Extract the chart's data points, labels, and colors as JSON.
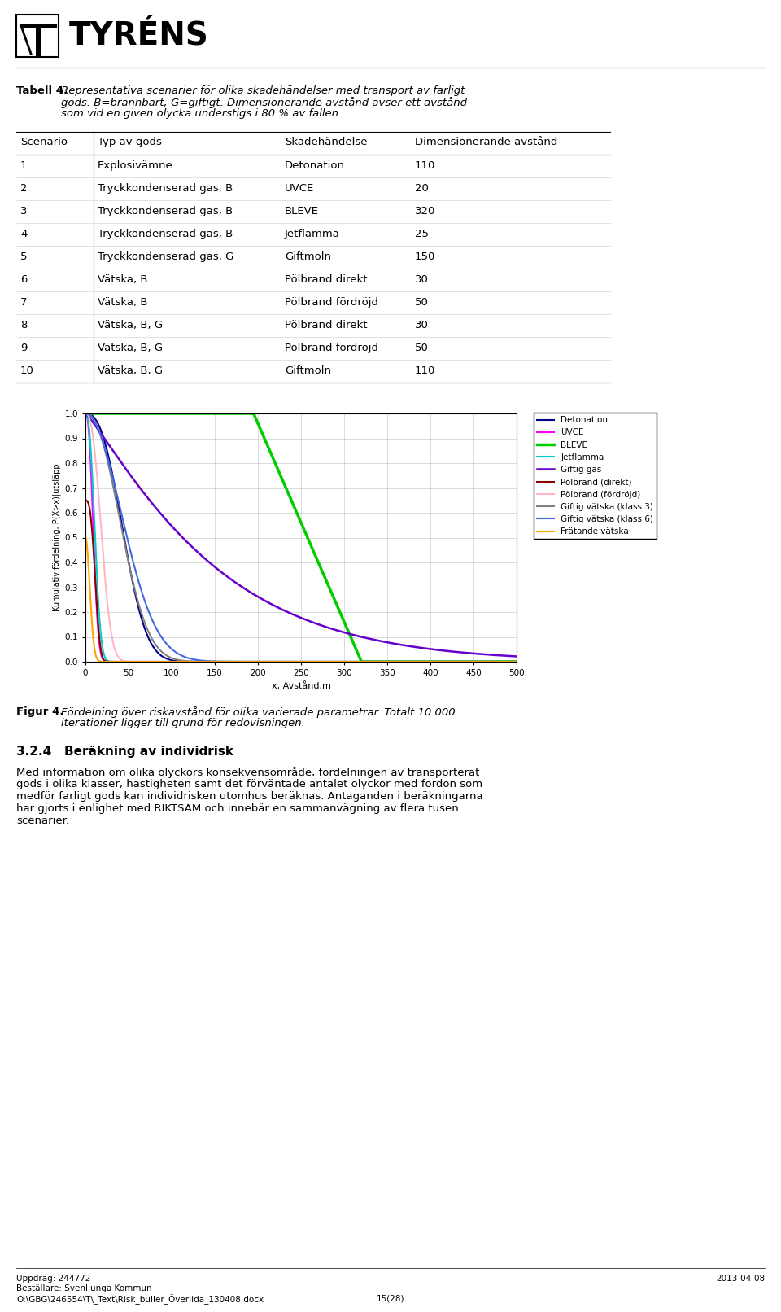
{
  "page_bg": "#ffffff",
  "logo_text": "TYRÉNS",
  "table_caption_bold": "Tabell 4.",
  "table_caption_lines": [
    "Representativa scenarier för olika skadehändelser med transport av farligt",
    "gods. B=brännbart, G=giftigt. Dimensionerande avstånd avser ett avstånd",
    "som vid en given olycka understigs i 80 % av fallen."
  ],
  "table_headers": [
    "Scenario",
    "Typ av gods",
    "Skadehändelse",
    "Dimensionerande avstånd"
  ],
  "table_rows": [
    [
      "1",
      "Explosivämne",
      "Detonation",
      "110"
    ],
    [
      "2",
      "Tryckkondenserad gas, B",
      "UVCE",
      "20"
    ],
    [
      "3",
      "Tryckkondenserad gas, B",
      "BLEVE",
      "320"
    ],
    [
      "4",
      "Tryckkondenserad gas, B",
      "Jetflamma",
      "25"
    ],
    [
      "5",
      "Tryckkondenserad gas, G",
      "Giftmoln",
      "150"
    ],
    [
      "6",
      "Vätska, B",
      "Pölbrand direkt",
      "30"
    ],
    [
      "7",
      "Vätska, B",
      "Pölbrand fördröjd",
      "50"
    ],
    [
      "8",
      "Vätska, B, G",
      "Pölbrand direkt",
      "30"
    ],
    [
      "9",
      "Vätska, B, G",
      "Pölbrand fördröjd",
      "50"
    ],
    [
      "10",
      "Vätska, B, G",
      "Giftmoln",
      "110"
    ]
  ],
  "fig_caption_bold": "Figur 4.",
  "fig_caption_lines": [
    "Fördelning över riskavstånd för olika varierade parametrar. Totalt 10 000",
    "iterationer ligger till grund för redovisningen."
  ],
  "section_heading": "3.2.4   Beräkning av individrisk",
  "body_lines": [
    "Med information om olika olyckors konsekvensområde, fördelningen av transporterat",
    "gods i olika klasser, hastigheten samt det förväntade antalet olyckor med fordon som",
    "medför farligt gods kan individrisken utomhus beräknas. Antaganden i beräkningarna",
    "har gjorts i enlighet med RIKTSAM och innebär en sammanvägning av flera tusen",
    "scenarier."
  ],
  "footer_left1": "Uppdrag: 244772",
  "footer_left2": "Beställare: Svenljunga Kommun",
  "footer_left3": "O:\\GBG\\246554\\T\\_Text\\Risk_buller_Överlida_130408.docx",
  "footer_right": "2013-04-08",
  "footer_page": "15(28)",
  "chart_ylabel": "Kumulativ fördelning, P(X>x)|utsläpp",
  "chart_xlabel": "x, Avstånd,m",
  "chart_xlim": [
    0,
    500
  ],
  "chart_ylim": [
    0,
    1
  ],
  "chart_yticks": [
    0,
    0.1,
    0.2,
    0.3,
    0.4,
    0.5,
    0.6,
    0.7,
    0.8,
    0.9,
    1
  ],
  "chart_xticks": [
    0,
    50,
    100,
    150,
    200,
    250,
    300,
    350,
    400,
    450,
    500
  ],
  "legend_entries": [
    {
      "label": "Detonation",
      "color": "#00008B",
      "lw": 1.5
    },
    {
      "label": "UVCE",
      "color": "#FF00FF",
      "lw": 1.5
    },
    {
      "label": "BLEVE",
      "color": "#00CC00",
      "lw": 2.5
    },
    {
      "label": "Jetflamma",
      "color": "#00CCCC",
      "lw": 1.5
    },
    {
      "label": "Giftig gas",
      "color": "#6600CC",
      "lw": 1.8
    },
    {
      "label": "Pölbrand (direkt)",
      "color": "#8B0000",
      "lw": 1.5
    },
    {
      "label": "Pölbrand (fördröjd)",
      "color": "#FFB6C1",
      "lw": 1.5
    },
    {
      "label": "Giftig vätska (klass 3)",
      "color": "#808080",
      "lw": 1.5
    },
    {
      "label": "Giftig vätska (klass 6)",
      "color": "#4169E1",
      "lw": 1.5
    },
    {
      "label": "Frätande vätska",
      "color": "#FFA500",
      "lw": 1.5
    }
  ]
}
